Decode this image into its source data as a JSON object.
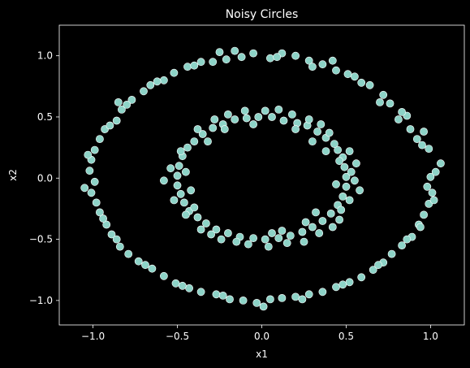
{
  "chart_data": {
    "type": "scatter",
    "title": "Noisy Circles",
    "xlabel": "x1",
    "ylabel": "x2",
    "xlim": [
      -1.2,
      1.2
    ],
    "ylim": [
      -1.2,
      1.25
    ],
    "xticks": [
      -1.0,
      -0.5,
      0.0,
      0.5,
      1.0
    ],
    "xtick_labels": [
      "−1.0",
      "−0.5",
      "0.0",
      "0.5",
      "1.0"
    ],
    "yticks": [
      -1.0,
      -0.5,
      0.0,
      0.5,
      1.0
    ],
    "ytick_labels": [
      "−1.0",
      "−0.5",
      "0.0",
      "0.5",
      "1.0"
    ],
    "grid": false,
    "background_color": "#000000",
    "point_color": "#8dd3c7",
    "point_edge_color": "#ffffff",
    "series": [
      {
        "points": [
          [
            1.0,
            0.01
          ],
          [
            1.06,
            0.12
          ],
          [
            0.99,
            0.24
          ],
          [
            0.95,
            0.27
          ],
          [
            0.96,
            0.38
          ],
          [
            0.88,
            0.4
          ],
          [
            0.86,
            0.51
          ],
          [
            0.83,
            0.54
          ],
          [
            0.76,
            0.61
          ],
          [
            0.72,
            0.68
          ],
          [
            0.64,
            0.76
          ],
          [
            0.59,
            0.78
          ],
          [
            0.51,
            0.85
          ],
          [
            0.44,
            0.88
          ],
          [
            0.36,
            0.93
          ],
          [
            0.28,
            0.96
          ],
          [
            0.2,
            1.0
          ],
          [
            0.12,
            1.02
          ],
          [
            0.05,
            0.98
          ],
          [
            -0.05,
            1.02
          ],
          [
            -0.12,
            0.99
          ],
          [
            -0.21,
            0.97
          ],
          [
            -0.29,
            0.95
          ],
          [
            -0.36,
            0.95
          ],
          [
            -0.44,
            0.91
          ],
          [
            -0.52,
            0.86
          ],
          [
            -0.58,
            0.8
          ],
          [
            -0.66,
            0.76
          ],
          [
            -0.7,
            0.71
          ],
          [
            -0.77,
            0.64
          ],
          [
            -0.83,
            0.56
          ],
          [
            -0.86,
            0.47
          ],
          [
            -0.93,
            0.4
          ],
          [
            -0.96,
            0.32
          ],
          [
            -0.99,
            0.23
          ],
          [
            -1.01,
            0.15
          ],
          [
            -1.02,
            0.06
          ],
          [
            -0.99,
            -0.03
          ],
          [
            -1.01,
            -0.12
          ],
          [
            -0.98,
            -0.2
          ],
          [
            -0.96,
            -0.28
          ],
          [
            -0.92,
            -0.38
          ],
          [
            -0.89,
            -0.46
          ],
          [
            -0.84,
            -0.56
          ],
          [
            -0.79,
            -0.62
          ],
          [
            -0.73,
            -0.68
          ],
          [
            -0.65,
            -0.74
          ],
          [
            -0.58,
            -0.8
          ],
          [
            -0.51,
            -0.86
          ],
          [
            -0.43,
            -0.9
          ],
          [
            -0.36,
            -0.93
          ],
          [
            -0.27,
            -0.95
          ],
          [
            -0.19,
            -0.99
          ],
          [
            -0.11,
            -1.0
          ],
          [
            -0.03,
            -1.02
          ],
          [
            0.05,
            -0.99
          ],
          [
            0.12,
            -0.98
          ],
          [
            0.2,
            -0.97
          ],
          [
            0.28,
            -0.95
          ],
          [
            0.36,
            -0.93
          ],
          [
            0.44,
            -0.89
          ],
          [
            0.52,
            -0.85
          ],
          [
            0.59,
            -0.81
          ],
          [
            0.66,
            -0.75
          ],
          [
            0.72,
            -0.69
          ],
          [
            0.77,
            -0.62
          ],
          [
            0.83,
            -0.55
          ],
          [
            0.89,
            -0.48
          ],
          [
            0.93,
            -0.38
          ],
          [
            0.96,
            -0.3
          ],
          [
            0.99,
            -0.21
          ],
          [
            1.01,
            -0.12
          ],
          [
            1.03,
            0.05
          ],
          [
            0.98,
            -0.07
          ],
          [
            0.92,
            0.32
          ],
          [
            0.81,
            0.48
          ],
          [
            0.7,
            0.62
          ],
          [
            0.55,
            0.83
          ],
          [
            0.3,
            0.91
          ],
          [
            0.09,
            0.99
          ],
          [
            -0.16,
            1.04
          ],
          [
            -0.4,
            0.92
          ],
          [
            -0.62,
            0.79
          ],
          [
            -0.8,
            0.6
          ],
          [
            -0.9,
            0.43
          ],
          [
            -1.03,
            0.19
          ],
          [
            -1.05,
            -0.08
          ],
          [
            -0.94,
            -0.33
          ],
          [
            -0.86,
            -0.5
          ],
          [
            -0.69,
            -0.71
          ],
          [
            -0.47,
            -0.88
          ],
          [
            -0.23,
            -0.96
          ],
          [
            0.01,
            -1.05
          ],
          [
            0.24,
            -0.99
          ],
          [
            0.48,
            -0.87
          ],
          [
            0.69,
            -0.71
          ],
          [
            0.86,
            -0.5
          ],
          [
            1.02,
            -0.18
          ],
          [
            -0.85,
            0.62
          ],
          [
            0.42,
            0.96
          ],
          [
            -0.25,
            1.03
          ],
          [
            0.94,
            -0.4
          ]
        ]
      },
      {
        "points": [
          [
            0.5,
            0.01
          ],
          [
            0.49,
            0.09
          ],
          [
            0.48,
            0.17
          ],
          [
            0.45,
            0.23
          ],
          [
            0.43,
            0.28
          ],
          [
            0.38,
            0.33
          ],
          [
            0.33,
            0.38
          ],
          [
            0.27,
            0.43
          ],
          [
            0.21,
            0.45
          ],
          [
            0.13,
            0.47
          ],
          [
            0.06,
            0.5
          ],
          [
            -0.02,
            0.5
          ],
          [
            -0.09,
            0.49
          ],
          [
            -0.16,
            0.48
          ],
          [
            -0.23,
            0.44
          ],
          [
            -0.29,
            0.41
          ],
          [
            -0.35,
            0.36
          ],
          [
            -0.4,
            0.3
          ],
          [
            -0.44,
            0.25
          ],
          [
            -0.47,
            0.18
          ],
          [
            -0.49,
            0.1
          ],
          [
            -0.5,
            0.02
          ],
          [
            -0.5,
            -0.06
          ],
          [
            -0.48,
            -0.13
          ],
          [
            -0.46,
            -0.2
          ],
          [
            -0.43,
            -0.27
          ],
          [
            -0.38,
            -0.32
          ],
          [
            -0.33,
            -0.37
          ],
          [
            -0.27,
            -0.42
          ],
          [
            -0.2,
            -0.45
          ],
          [
            -0.13,
            -0.48
          ],
          [
            -0.05,
            -0.49
          ],
          [
            0.02,
            -0.5
          ],
          [
            0.1,
            -0.49
          ],
          [
            0.17,
            -0.47
          ],
          [
            0.24,
            -0.44
          ],
          [
            0.3,
            -0.4
          ],
          [
            0.36,
            -0.35
          ],
          [
            0.41,
            -0.29
          ],
          [
            0.45,
            -0.22
          ],
          [
            0.48,
            -0.15
          ],
          [
            0.5,
            -0.07
          ],
          [
            0.53,
            0.05
          ],
          [
            0.46,
            0.14
          ],
          [
            0.4,
            0.37
          ],
          [
            0.3,
            0.3
          ],
          [
            0.18,
            0.52
          ],
          [
            0.02,
            0.55
          ],
          [
            -0.2,
            0.52
          ],
          [
            -0.38,
            0.4
          ],
          [
            -0.54,
            0.08
          ],
          [
            -0.45,
            -0.3
          ],
          [
            -0.3,
            -0.46
          ],
          [
            -0.08,
            -0.54
          ],
          [
            0.15,
            -0.53
          ],
          [
            0.34,
            -0.45
          ],
          [
            0.52,
            -0.18
          ],
          [
            0.44,
            -0.05
          ],
          [
            0.56,
            0.12
          ],
          [
            0.28,
            0.48
          ],
          [
            -0.05,
            0.44
          ],
          [
            -0.32,
            0.3
          ],
          [
            -0.42,
            -0.1
          ],
          [
            -0.24,
            -0.5
          ],
          [
            0.06,
            -0.45
          ],
          [
            0.26,
            -0.36
          ],
          [
            0.47,
            -0.26
          ],
          [
            0.38,
            0.22
          ],
          [
            -0.1,
            0.55
          ],
          [
            -0.52,
            -0.18
          ],
          [
            0.12,
            -0.43
          ],
          [
            0.55,
            -0.02
          ],
          [
            0.35,
            0.44
          ],
          [
            -0.45,
            0.05
          ],
          [
            0.2,
            0.4
          ],
          [
            -0.36,
            -0.42
          ],
          [
            0.04,
            -0.56
          ],
          [
            0.42,
            -0.4
          ],
          [
            -0.28,
            0.48
          ],
          [
            0.58,
            -0.1
          ],
          [
            -0.15,
            -0.52
          ],
          [
            0.25,
            -0.52
          ],
          [
            -0.48,
            0.22
          ],
          [
            0.52,
            0.22
          ],
          [
            0.1,
            0.56
          ],
          [
            -0.4,
            -0.24
          ],
          [
            0.46,
            -0.34
          ],
          [
            -0.58,
            -0.02
          ],
          [
            0.32,
            -0.28
          ],
          [
            -0.22,
            0.4
          ]
        ]
      }
    ]
  }
}
